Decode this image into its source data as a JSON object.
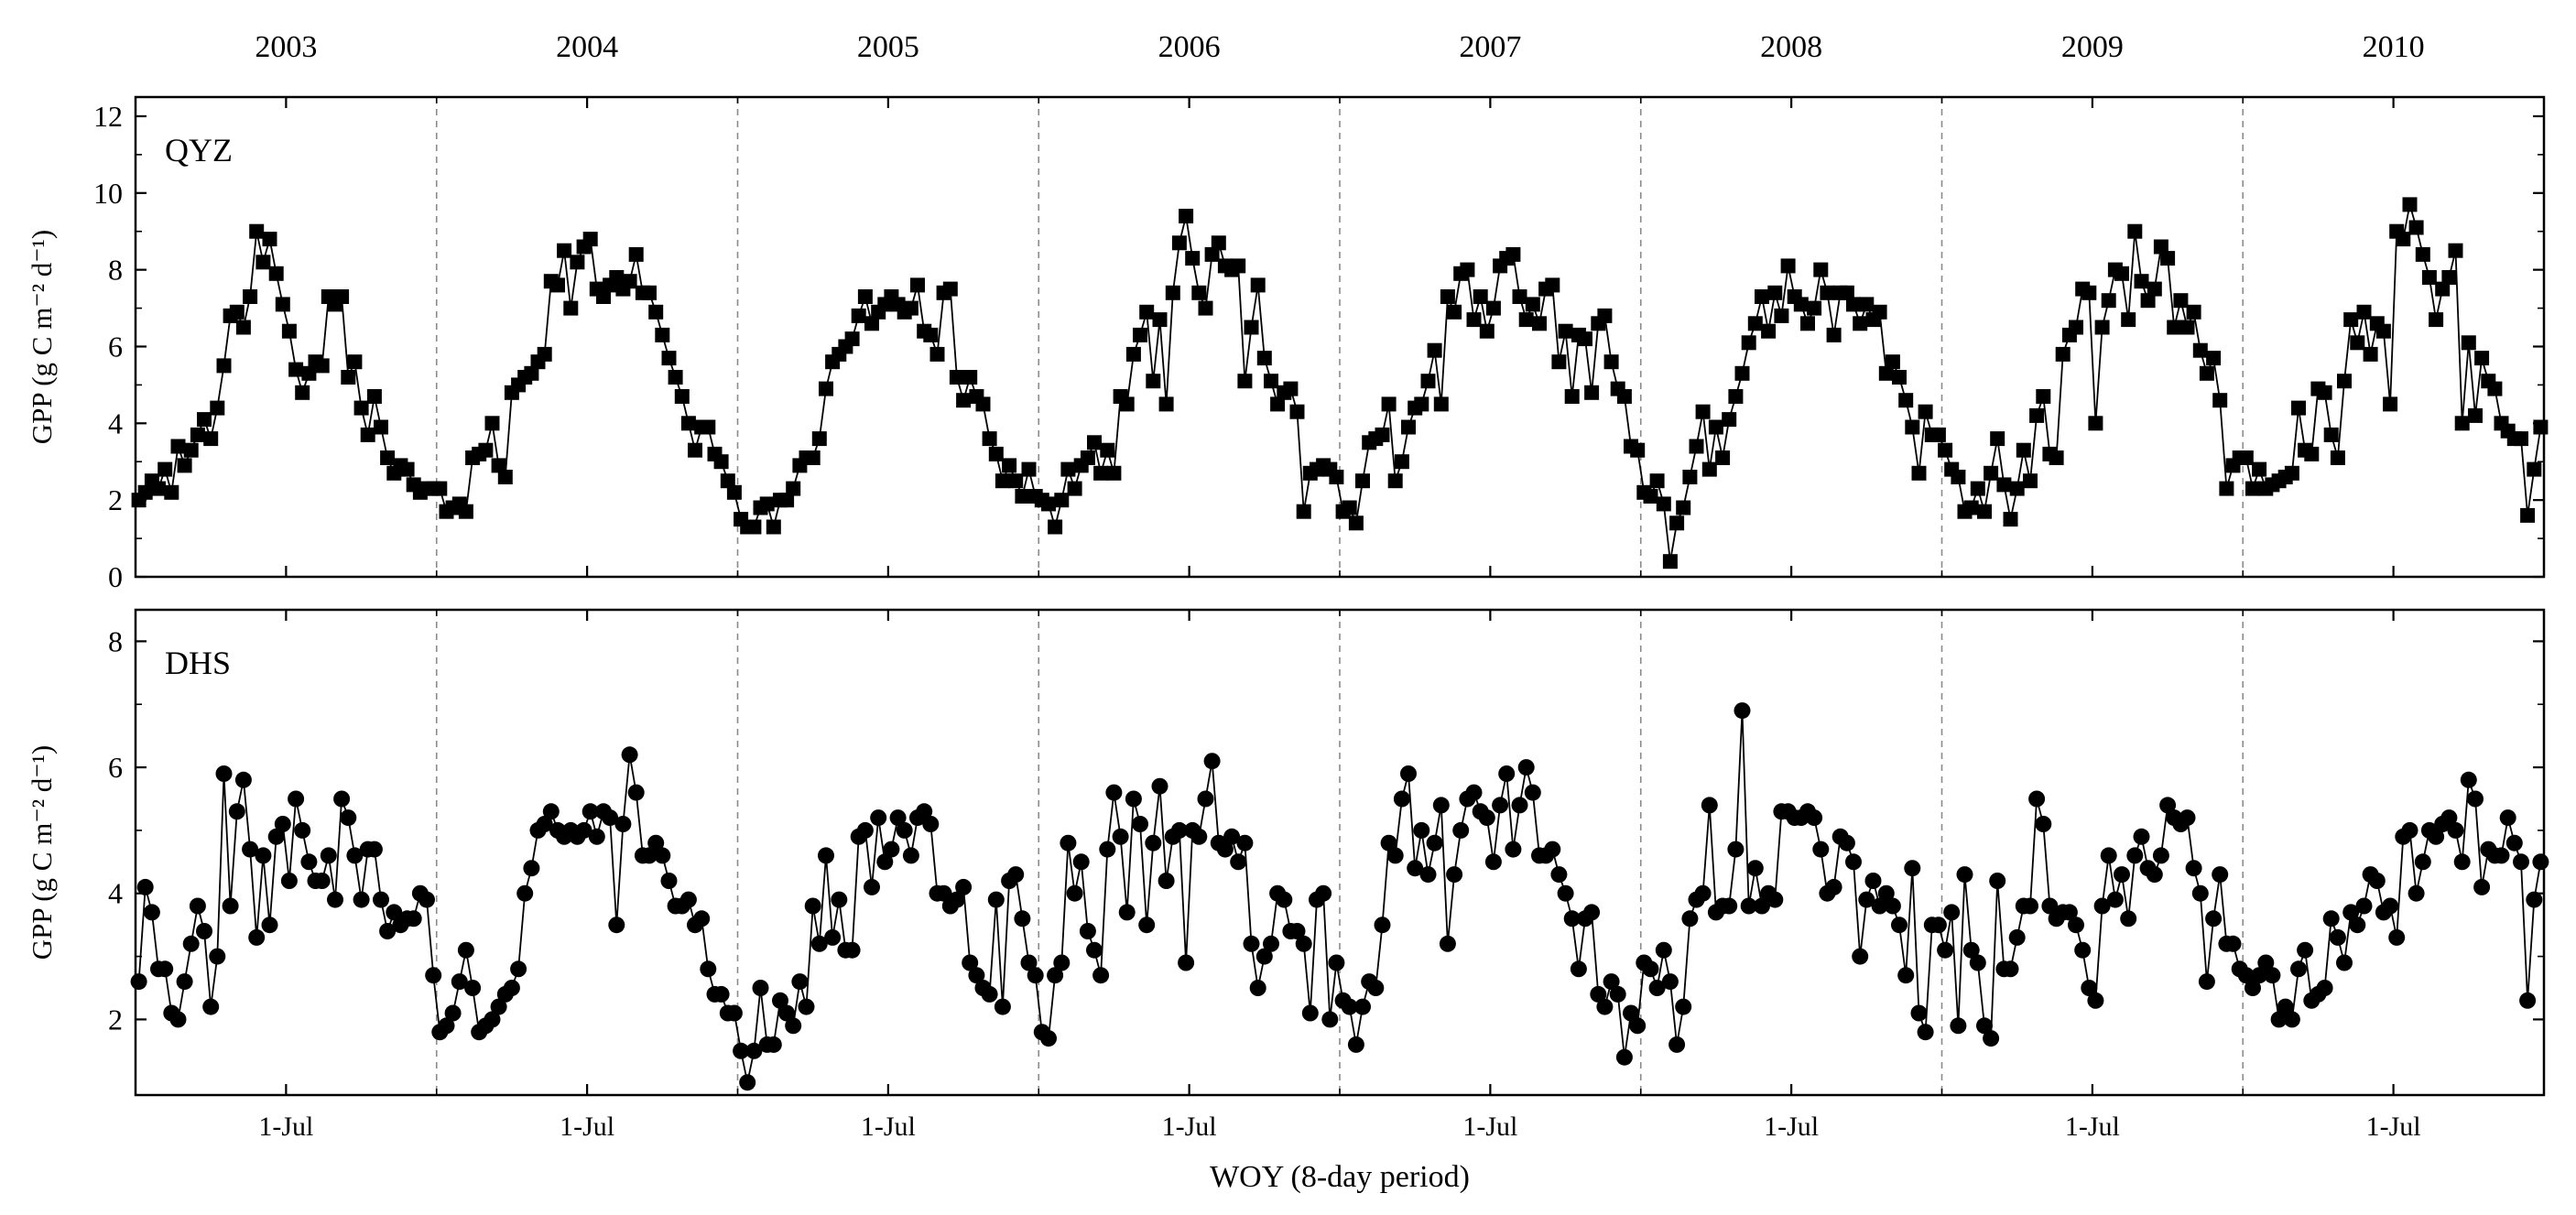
{
  "chart_data": {
    "type": "line",
    "xlabel": "WOY (8-day period)",
    "years": [
      "2003",
      "2004",
      "2005",
      "2006",
      "2007",
      "2008",
      "2009",
      "2010"
    ],
    "points_per_year": 46,
    "x_tick_label": "1-Jul",
    "panels": [
      {
        "id": "QYZ",
        "name": "QYZ",
        "marker": "square",
        "ylabel": "GPP (g C m⁻² d⁻¹)",
        "ylim": [
          0,
          12.5
        ],
        "yticks": [
          0,
          2,
          4,
          6,
          8,
          10,
          12
        ],
        "ytick_labels": [
          "0",
          "2",
          "4",
          "6",
          "8",
          "10",
          "12"
        ],
        "series": [
          {
            "year": "2003",
            "values": [
              2.0,
              2.2,
              2.5,
              2.3,
              2.8,
              2.2,
              3.4,
              2.9,
              3.3,
              3.7,
              4.1,
              3.6,
              4.4,
              5.5,
              6.8,
              6.9,
              6.5,
              7.3,
              9.0,
              8.2,
              8.8,
              7.9,
              7.1,
              6.4,
              5.4,
              4.8,
              5.3,
              5.6,
              5.5,
              7.3,
              7.1,
              7.3,
              5.2,
              5.6,
              4.4,
              3.7,
              4.7,
              3.9,
              3.1,
              2.7,
              2.9,
              2.8,
              2.4,
              2.2,
              2.3,
              2.3
            ]
          },
          {
            "year": "2004",
            "values": [
              2.3,
              1.7,
              1.8,
              1.9,
              1.7,
              3.1,
              3.2,
              3.3,
              4.0,
              2.9,
              2.6,
              4.8,
              5.0,
              5.2,
              5.3,
              5.6,
              5.8,
              7.7,
              7.6,
              8.5,
              7.0,
              8.2,
              8.6,
              8.8,
              7.5,
              7.3,
              7.6,
              7.8,
              7.5,
              7.7,
              8.4,
              7.4,
              7.4,
              6.9,
              6.3,
              5.7,
              5.2,
              4.7,
              4.0,
              3.3,
              3.9,
              3.9,
              3.2,
              3.0,
              2.5,
              2.2
            ]
          },
          {
            "year": "2005",
            "values": [
              1.5,
              1.3,
              1.3,
              1.8,
              1.9,
              1.3,
              2.0,
              2.0,
              2.3,
              2.9,
              3.1,
              3.1,
              3.6,
              4.9,
              5.6,
              5.8,
              6.0,
              6.2,
              6.8,
              7.3,
              6.6,
              6.9,
              7.1,
              7.3,
              7.1,
              6.9,
              7.0,
              7.6,
              6.4,
              6.3,
              5.8,
              7.4,
              7.5,
              5.2,
              4.6,
              5.2,
              4.7,
              4.5,
              3.6,
              3.2,
              2.5,
              2.9,
              2.5,
              2.1,
              2.8,
              2.1
            ]
          },
          {
            "year": "2006",
            "values": [
              2.0,
              1.9,
              1.3,
              2.0,
              2.8,
              2.3,
              2.9,
              3.1,
              3.5,
              2.7,
              3.3,
              2.7,
              4.7,
              4.5,
              5.8,
              6.3,
              6.9,
              5.1,
              6.7,
              4.5,
              7.4,
              8.7,
              9.4,
              8.3,
              7.4,
              7.0,
              8.4,
              8.7,
              8.1,
              8.0,
              8.1,
              5.1,
              6.5,
              7.6,
              5.7,
              5.1,
              4.5,
              4.8,
              4.9,
              4.3,
              1.7,
              2.7,
              2.8,
              2.9,
              2.8,
              2.6
            ]
          },
          {
            "year": "2007",
            "values": [
              1.7,
              1.8,
              1.4,
              2.5,
              3.5,
              3.6,
              3.7,
              4.5,
              2.5,
              3.0,
              3.9,
              4.4,
              4.5,
              5.1,
              5.9,
              4.5,
              7.3,
              6.9,
              7.9,
              8.0,
              6.7,
              7.3,
              6.4,
              7.0,
              8.1,
              8.3,
              8.4,
              7.3,
              6.7,
              7.1,
              6.6,
              7.5,
              7.6,
              5.6,
              6.4,
              4.7,
              6.3,
              6.2,
              4.8,
              6.6,
              6.8,
              5.6,
              4.9,
              4.7,
              3.4,
              3.3
            ]
          },
          {
            "year": "2008",
            "values": [
              2.2,
              2.1,
              2.5,
              1.9,
              0.4,
              1.4,
              1.8,
              2.6,
              3.4,
              4.3,
              2.8,
              3.9,
              3.1,
              4.1,
              4.7,
              5.3,
              6.1,
              6.6,
              7.3,
              6.4,
              7.4,
              6.8,
              8.1,
              7.3,
              7.1,
              6.6,
              7.0,
              8.0,
              7.4,
              6.3,
              7.4,
              7.4,
              7.1,
              6.6,
              7.1,
              6.7,
              6.9,
              5.3,
              5.6,
              5.2,
              4.6,
              3.9,
              2.7,
              4.3,
              3.7,
              3.7
            ]
          },
          {
            "year": "2009",
            "values": [
              3.3,
              2.8,
              2.6,
              1.7,
              1.8,
              2.3,
              1.7,
              2.7,
              3.6,
              2.4,
              1.5,
              2.3,
              3.3,
              2.5,
              4.2,
              4.7,
              3.2,
              3.1,
              5.8,
              6.3,
              6.5,
              7.5,
              7.4,
              4.0,
              6.5,
              7.2,
              8.0,
              7.9,
              6.7,
              9.0,
              7.7,
              7.2,
              7.5,
              8.6,
              8.3,
              6.5,
              7.2,
              6.5,
              6.9,
              5.9,
              5.3,
              5.7,
              4.6,
              2.3,
              2.9,
              3.1
            ]
          },
          {
            "year": "2010",
            "values": [
              3.1,
              2.3,
              2.8,
              2.3,
              2.4,
              2.5,
              2.6,
              2.7,
              4.4,
              3.3,
              3.2,
              4.9,
              4.8,
              3.7,
              3.1,
              5.1,
              6.7,
              6.1,
              6.9,
              5.8,
              6.6,
              6.4,
              4.5,
              9.0,
              8.8,
              9.7,
              9.1,
              8.4,
              7.8,
              6.7,
              7.5,
              7.8,
              8.5,
              4.0,
              6.1,
              4.2,
              5.7,
              5.1,
              4.9,
              4.0,
              3.8,
              3.6,
              3.6,
              1.6,
              2.8,
              3.9
            ]
          }
        ]
      },
      {
        "id": "DHS",
        "name": "DHS",
        "marker": "circle",
        "ylabel": "GPP (g C m⁻² d⁻¹)",
        "ylim": [
          0.8,
          8.5
        ],
        "yticks": [
          2,
          4,
          6,
          8
        ],
        "ytick_labels": [
          "2",
          "4",
          "6",
          "8"
        ],
        "series": [
          {
            "year": "2003",
            "values": [
              2.6,
              4.1,
              3.7,
              2.8,
              2.8,
              2.1,
              2.0,
              2.6,
              3.2,
              3.8,
              3.4,
              2.2,
              3.0,
              5.9,
              3.8,
              5.3,
              5.8,
              4.7,
              3.3,
              4.6,
              3.5,
              4.9,
              5.1,
              4.2,
              5.5,
              5.0,
              4.5,
              4.2,
              4.2,
              4.6,
              3.9,
              5.5,
              5.2,
              4.6,
              3.9,
              4.7,
              4.7,
              3.9,
              3.4,
              3.7,
              3.5,
              3.6,
              3.6,
              4.0,
              3.9,
              2.7
            ]
          },
          {
            "year": "2004",
            "values": [
              1.8,
              1.9,
              2.1,
              2.6,
              3.1,
              2.5,
              1.8,
              1.9,
              2.0,
              2.2,
              2.4,
              2.5,
              2.8,
              4.0,
              4.4,
              5.0,
              5.1,
              5.3,
              5.0,
              4.9,
              5.0,
              4.9,
              5.0,
              5.3,
              4.9,
              5.3,
              5.2,
              3.5,
              5.1,
              6.2,
              5.6,
              4.6,
              4.6,
              4.8,
              4.6,
              4.2,
              3.8,
              3.8,
              3.9,
              3.5,
              3.6,
              2.8,
              2.4,
              2.4,
              2.1,
              2.1
            ]
          },
          {
            "year": "2005",
            "values": [
              1.5,
              1.0,
              1.5,
              2.5,
              1.6,
              1.6,
              2.3,
              2.1,
              1.9,
              2.6,
              2.2,
              3.8,
              3.2,
              4.6,
              3.3,
              3.9,
              3.1,
              3.1,
              4.9,
              5.0,
              4.1,
              5.2,
              4.5,
              4.7,
              5.2,
              5.0,
              4.6,
              5.2,
              5.3,
              5.1,
              4.0,
              4.0,
              3.8,
              3.9,
              4.1,
              2.9,
              2.7,
              2.5,
              2.4,
              3.9,
              2.2,
              4.2,
              4.3,
              3.6,
              2.9,
              2.7
            ]
          },
          {
            "year": "2006",
            "values": [
              1.8,
              1.7,
              2.7,
              2.9,
              4.8,
              4.0,
              4.5,
              3.4,
              3.1,
              2.7,
              4.7,
              5.6,
              4.9,
              3.7,
              5.5,
              5.1,
              3.5,
              4.8,
              5.7,
              4.2,
              4.9,
              5.0,
              2.9,
              5.0,
              4.9,
              5.5,
              6.1,
              4.8,
              4.7,
              4.9,
              4.5,
              4.8,
              3.2,
              2.5,
              3.0,
              3.2,
              4.0,
              3.9,
              3.4,
              3.4,
              3.2,
              2.1,
              3.9,
              4.0,
              2.0,
              2.9
            ]
          },
          {
            "year": "2007",
            "values": [
              2.3,
              2.2,
              1.6,
              2.2,
              2.6,
              2.5,
              3.5,
              4.8,
              4.6,
              5.5,
              5.9,
              4.4,
              5.0,
              4.3,
              4.8,
              5.4,
              3.2,
              4.3,
              5.0,
              5.5,
              5.6,
              5.3,
              5.2,
              4.5,
              5.4,
              5.9,
              4.7,
              5.4,
              6.0,
              5.6,
              4.6,
              4.6,
              4.7,
              4.3,
              4.0,
              3.6,
              2.8,
              3.6,
              3.7,
              2.4,
              2.2,
              2.6,
              2.4,
              1.4,
              2.1,
              1.9
            ]
          },
          {
            "year": "2008",
            "values": [
              2.9,
              2.8,
              2.5,
              3.1,
              2.6,
              1.6,
              2.2,
              3.6,
              3.9,
              4.0,
              5.4,
              3.7,
              3.8,
              3.8,
              4.7,
              6.9,
              3.8,
              4.4,
              3.8,
              4.0,
              3.9,
              5.3,
              5.3,
              5.2,
              5.2,
              5.3,
              5.2,
              4.7,
              4.0,
              4.1,
              4.9,
              4.8,
              4.5,
              3.0,
              3.9,
              4.2,
              3.8,
              4.0,
              3.8,
              3.5,
              2.7,
              4.4,
              2.1,
              1.8,
              3.5,
              3.5
            ]
          },
          {
            "year": "2009",
            "values": [
              3.1,
              3.7,
              1.9,
              4.3,
              3.1,
              2.9,
              1.9,
              1.7,
              4.2,
              2.8,
              2.8,
              3.3,
              3.8,
              3.8,
              5.5,
              5.1,
              3.8,
              3.6,
              3.7,
              3.7,
              3.5,
              3.1,
              2.5,
              2.3,
              3.8,
              4.6,
              3.9,
              4.3,
              3.6,
              4.6,
              4.9,
              4.4,
              4.3,
              4.6,
              5.4,
              5.2,
              5.1,
              5.2,
              4.4,
              4.0,
              2.6,
              3.6,
              4.3,
              3.2,
              3.2,
              2.8
            ]
          },
          {
            "year": "2010",
            "values": [
              2.7,
              2.5,
              2.7,
              2.9,
              2.7,
              2.0,
              2.2,
              2.0,
              2.8,
              3.1,
              2.3,
              2.4,
              2.5,
              3.6,
              3.3,
              2.9,
              3.7,
              3.5,
              3.8,
              4.3,
              4.2,
              3.7,
              3.8,
              3.3,
              4.9,
              5.0,
              4.0,
              4.5,
              5.0,
              4.9,
              5.1,
              5.2,
              5.0,
              4.5,
              5.8,
              5.5,
              4.1,
              4.7,
              4.6,
              4.6,
              5.2,
              4.8,
              4.5,
              2.3,
              3.9,
              4.5
            ]
          }
        ]
      }
    ]
  }
}
